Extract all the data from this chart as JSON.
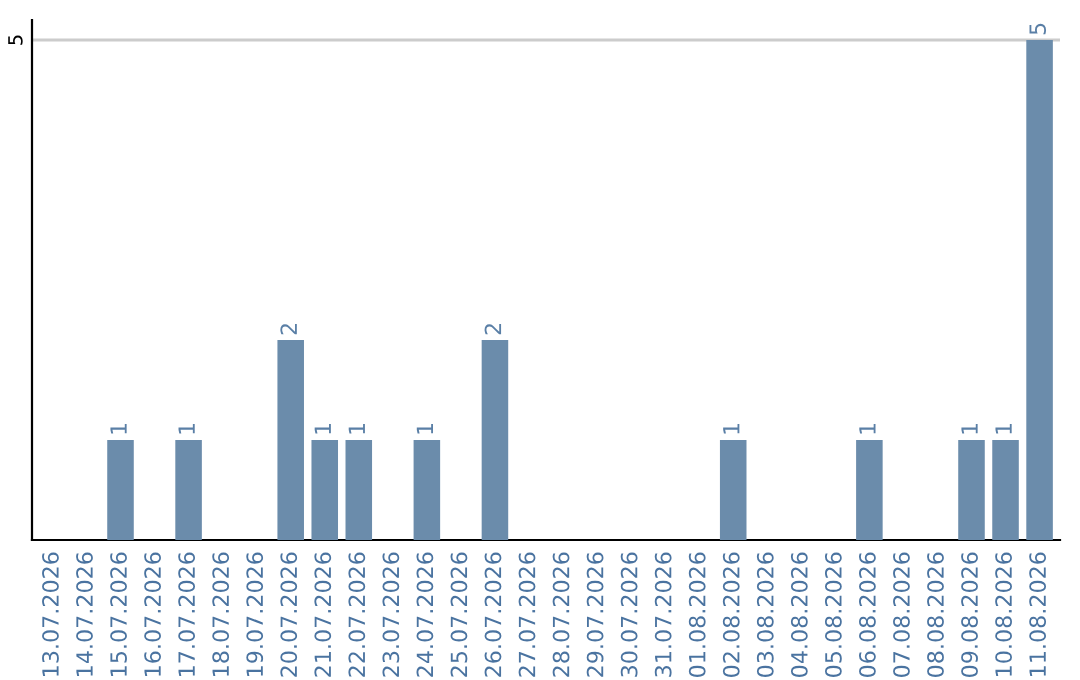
{
  "chart_data": {
    "type": "bar",
    "categories": [
      "13.07.2026",
      "14.07.2026",
      "15.07.2026",
      "16.07.2026",
      "17.07.2026",
      "18.07.2026",
      "19.07.2026",
      "20.07.2026",
      "21.07.2026",
      "22.07.2026",
      "23.07.2026",
      "24.07.2026",
      "25.07.2026",
      "26.07.2026",
      "27.07.2026",
      "28.07.2026",
      "29.07.2026",
      "30.07.2026",
      "31.07.2026",
      "01.08.2026",
      "02.08.2026",
      "03.08.2026",
      "04.08.2026",
      "05.08.2026",
      "06.08.2026",
      "07.08.2026",
      "08.08.2026",
      "09.08.2026",
      "10.08.2026",
      "11.08.2026"
    ],
    "values": [
      0,
      0,
      1,
      0,
      1,
      0,
      0,
      2,
      1,
      1,
      0,
      1,
      0,
      2,
      0,
      0,
      0,
      0,
      0,
      0,
      1,
      0,
      0,
      0,
      1,
      0,
      0,
      1,
      1,
      5
    ],
    "value_labels": [
      null,
      null,
      "1",
      null,
      "1",
      null,
      null,
      "2",
      "1",
      "1",
      null,
      "1",
      null,
      "2",
      null,
      null,
      null,
      null,
      null,
      null,
      "1",
      null,
      null,
      null,
      "1",
      null,
      null,
      "1",
      "1",
      "5"
    ],
    "color": "#6b8cab",
    "ylim": [
      0,
      5.2
    ],
    "yticks": [
      5
    ],
    "grid": "y"
  }
}
